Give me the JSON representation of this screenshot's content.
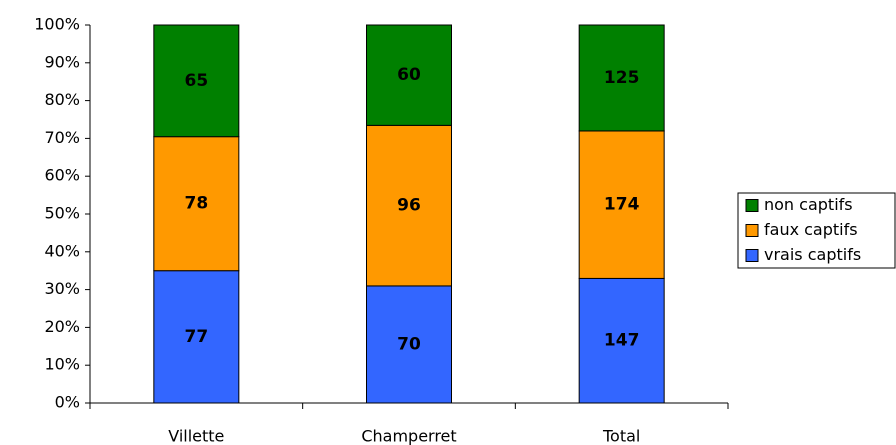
{
  "chart_data": {
    "type": "bar",
    "stacking": "percent",
    "categories": [
      "Villette",
      "Champerret",
      "Total"
    ],
    "series": [
      {
        "name": "vrais captifs",
        "color": "#3366ff",
        "values": [
          77,
          70,
          147
        ]
      },
      {
        "name": "faux captifs",
        "color": "#ff9900",
        "values": [
          78,
          96,
          174
        ]
      },
      {
        "name": "non captifs",
        "color": "#008000",
        "values": [
          65,
          60,
          125
        ]
      }
    ],
    "ylim": [
      0,
      100
    ],
    "yticks": [
      {
        "value": 0,
        "label": "0%"
      },
      {
        "value": 10,
        "label": "10%"
      },
      {
        "value": 20,
        "label": "20%"
      },
      {
        "value": 30,
        "label": "30%"
      },
      {
        "value": 40,
        "label": "40%"
      },
      {
        "value": 50,
        "label": "50%"
      },
      {
        "value": 60,
        "label": "60%"
      },
      {
        "value": 70,
        "label": "70%"
      },
      {
        "value": 80,
        "label": "80%"
      },
      {
        "value": 90,
        "label": "90%"
      },
      {
        "value": 100,
        "label": "100%"
      }
    ],
    "grid": false,
    "legend": "right"
  }
}
